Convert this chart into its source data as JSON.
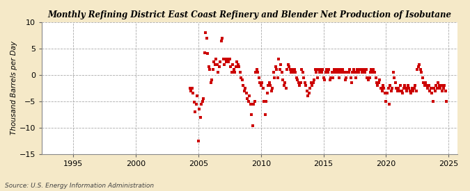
{
  "title": "Monthly Refining District East Coast Refinery and Blender Net Production of Isobutane",
  "ylabel": "Thousand Barrels per Day",
  "source": "Source: U.S. Energy Information Administration",
  "background_color": "#f5e9c8",
  "plot_bg_color": "#ffffff",
  "marker_color": "#cc0000",
  "marker_size": 3.5,
  "xlim": [
    1992.5,
    2025.7
  ],
  "ylim": [
    -15,
    10
  ],
  "yticks": [
    -15,
    -10,
    -5,
    0,
    5,
    10
  ],
  "xticks": [
    1995,
    2000,
    2005,
    2010,
    2015,
    2020,
    2025
  ],
  "scatter_x": [
    2004.33,
    2004.42,
    2004.5,
    2004.58,
    2004.67,
    2004.75,
    2004.83,
    2004.92,
    2005.0,
    2005.08,
    2005.17,
    2005.25,
    2005.33,
    2005.42,
    2005.5,
    2005.58,
    2005.67,
    2005.75,
    2005.83,
    2005.92,
    2006.0,
    2006.08,
    2006.17,
    2006.25,
    2006.33,
    2006.42,
    2006.5,
    2006.58,
    2006.67,
    2006.75,
    2006.83,
    2006.92,
    2007.0,
    2007.08,
    2007.17,
    2007.25,
    2007.33,
    2007.42,
    2007.5,
    2007.58,
    2007.67,
    2007.75,
    2007.83,
    2007.92,
    2008.0,
    2008.08,
    2008.17,
    2008.25,
    2008.33,
    2008.42,
    2008.5,
    2008.58,
    2008.67,
    2008.75,
    2008.83,
    2008.92,
    2009.0,
    2009.08,
    2009.17,
    2009.25,
    2009.33,
    2009.42,
    2009.5,
    2009.58,
    2009.67,
    2009.75,
    2009.83,
    2009.92,
    2010.0,
    2010.08,
    2010.17,
    2010.25,
    2010.33,
    2010.42,
    2010.5,
    2010.58,
    2010.67,
    2010.75,
    2010.83,
    2010.92,
    2011.0,
    2011.08,
    2011.17,
    2011.25,
    2011.33,
    2011.42,
    2011.5,
    2011.58,
    2011.67,
    2011.75,
    2011.83,
    2011.92,
    2012.0,
    2012.08,
    2012.17,
    2012.25,
    2012.33,
    2012.42,
    2012.5,
    2012.58,
    2012.67,
    2012.75,
    2012.83,
    2012.92,
    2013.0,
    2013.08,
    2013.17,
    2013.25,
    2013.33,
    2013.42,
    2013.5,
    2013.58,
    2013.67,
    2013.75,
    2013.83,
    2013.92,
    2014.0,
    2014.08,
    2014.17,
    2014.25,
    2014.33,
    2014.42,
    2014.5,
    2014.58,
    2014.67,
    2014.75,
    2014.83,
    2014.92,
    2015.0,
    2015.08,
    2015.17,
    2015.25,
    2015.33,
    2015.42,
    2015.5,
    2015.58,
    2015.67,
    2015.75,
    2015.83,
    2015.92,
    2016.0,
    2016.08,
    2016.17,
    2016.25,
    2016.33,
    2016.42,
    2016.5,
    2016.58,
    2016.67,
    2016.75,
    2016.83,
    2016.92,
    2017.0,
    2017.08,
    2017.17,
    2017.25,
    2017.33,
    2017.42,
    2017.5,
    2017.58,
    2017.67,
    2017.75,
    2017.83,
    2017.92,
    2018.0,
    2018.08,
    2018.17,
    2018.25,
    2018.33,
    2018.42,
    2018.5,
    2018.58,
    2018.67,
    2018.75,
    2018.83,
    2018.92,
    2019.0,
    2019.08,
    2019.17,
    2019.25,
    2019.33,
    2019.42,
    2019.5,
    2019.58,
    2019.67,
    2019.75,
    2019.83,
    2019.92,
    2020.0,
    2020.08,
    2020.17,
    2020.25,
    2020.33,
    2020.42,
    2020.5,
    2020.58,
    2020.67,
    2020.75,
    2020.83,
    2020.92,
    2021.0,
    2021.08,
    2021.17,
    2021.25,
    2021.33,
    2021.42,
    2021.5,
    2021.58,
    2021.67,
    2021.75,
    2021.83,
    2021.92,
    2022.0,
    2022.08,
    2022.17,
    2022.25,
    2022.33,
    2022.42,
    2022.5,
    2022.58,
    2022.67,
    2022.75,
    2022.83,
    2022.92,
    2023.0,
    2023.08,
    2023.17,
    2023.25,
    2023.33,
    2023.42,
    2023.5,
    2023.58,
    2023.67,
    2023.75,
    2023.83,
    2023.92,
    2024.0,
    2024.08,
    2024.17,
    2024.25,
    2024.33,
    2024.42,
    2024.5,
    2024.58,
    2024.67,
    2024.75,
    2024.83
  ],
  "scatter_y": [
    -2.5,
    -3.0,
    -2.5,
    -3.5,
    -5.2,
    -7.0,
    -5.5,
    -4.0,
    -12.5,
    -6.5,
    -8.0,
    -5.5,
    -5.0,
    -4.5,
    4.2,
    8.0,
    7.0,
    4.0,
    1.5,
    1.0,
    -1.5,
    -1.0,
    1.0,
    2.5,
    2.0,
    3.0,
    2.0,
    0.5,
    1.5,
    2.5,
    6.5,
    7.0,
    3.0,
    2.0,
    3.0,
    2.5,
    3.0,
    2.5,
    3.0,
    1.5,
    0.5,
    2.0,
    1.0,
    0.5,
    1.5,
    2.5,
    2.0,
    1.5,
    0.5,
    -0.5,
    -1.0,
    -2.0,
    -3.0,
    -2.5,
    -3.5,
    -4.5,
    -5.0,
    -4.0,
    -5.5,
    -7.5,
    -9.7,
    -5.5,
    -5.0,
    0.5,
    1.0,
    0.5,
    -0.5,
    -1.5,
    -2.0,
    -1.5,
    -2.5,
    -5.0,
    -7.5,
    -5.0,
    -3.5,
    -2.0,
    -1.5,
    -2.0,
    -3.0,
    -2.5,
    0.5,
    -0.5,
    1.5,
    1.0,
    -0.5,
    3.0,
    1.0,
    2.0,
    0.5,
    -1.0,
    -2.0,
    -1.5,
    -2.5,
    1.0,
    2.0,
    1.5,
    1.0,
    0.5,
    0.5,
    1.0,
    1.0,
    0.5,
    -0.5,
    -1.0,
    -1.5,
    -2.0,
    -1.5,
    1.0,
    0.5,
    -0.5,
    -1.5,
    -2.0,
    -3.0,
    -4.0,
    -3.5,
    -2.5,
    -1.5,
    -2.0,
    -1.5,
    -1.0,
    1.0,
    0.5,
    -0.5,
    1.0,
    0.5,
    1.0,
    0.5,
    1.0,
    -0.5,
    -1.0,
    0.5,
    1.0,
    0.5,
    1.0,
    -1.0,
    -0.5,
    0.5,
    -0.5,
    1.0,
    0.5,
    0.5,
    1.0,
    0.5,
    -0.5,
    1.0,
    0.5,
    1.0,
    0.5,
    0.5,
    -1.0,
    -0.5,
    0.5,
    0.5,
    1.0,
    -0.5,
    -1.5,
    0.5,
    1.0,
    0.5,
    -0.5,
    1.0,
    0.5,
    0.5,
    1.0,
    1.0,
    0.5,
    0.5,
    1.0,
    0.5,
    1.0,
    -0.5,
    -1.0,
    -0.5,
    0.5,
    1.0,
    0.5,
    1.0,
    0.5,
    -0.5,
    -1.5,
    -2.0,
    -1.5,
    -1.0,
    -2.5,
    -3.0,
    -2.0,
    -2.5,
    -3.5,
    -5.0,
    -3.5,
    -2.5,
    -5.5,
    -2.0,
    -3.0,
    -2.5,
    0.5,
    -0.5,
    -1.5,
    -2.5,
    -3.0,
    -2.5,
    -3.0,
    -2.0,
    -3.0,
    -3.5,
    -2.5,
    -2.0,
    -2.5,
    -3.0,
    -2.0,
    -2.5,
    -3.0,
    -3.5,
    -2.5,
    -3.0,
    -2.5,
    -2.0,
    -3.0,
    1.0,
    1.5,
    2.0,
    1.0,
    0.5,
    -0.5,
    -1.5,
    -2.0,
    -1.5,
    -2.0,
    -2.5,
    -2.0,
    -3.0,
    -2.5,
    -3.5,
    -5.0,
    -2.5,
    -3.0,
    -2.0,
    -2.5,
    -1.5,
    -2.0,
    -2.5,
    -2.0,
    -3.0,
    -2.5,
    -2.0,
    -3.0,
    -5.0
  ]
}
